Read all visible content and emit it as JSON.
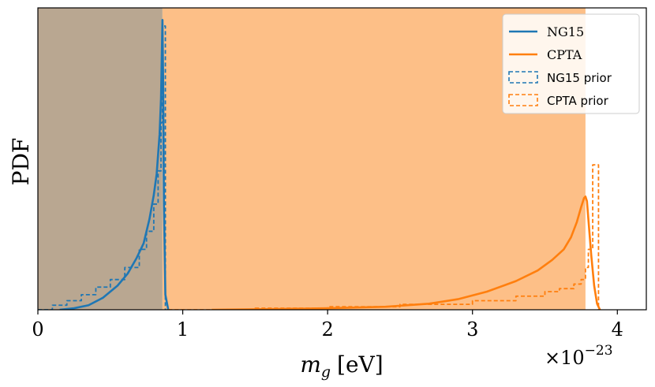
{
  "chart_data": {
    "type": "line",
    "xlabel": "m_g [eV]",
    "xlabel_main": "m",
    "xlabel_sub": "g",
    "xlabel_unit": "[eV]",
    "ylabel": "PDF",
    "xlim": [
      0,
      4.2
    ],
    "x_ticks": [
      "0",
      "1",
      "2",
      "3",
      "4"
    ],
    "x_tick_values": [
      0,
      1,
      2,
      3,
      4
    ],
    "offset_text": "×10",
    "offset_exp": "−23",
    "legend_position": "top-right",
    "shaded_regions": [
      {
        "name": "NG15 bound",
        "x": [
          0,
          0.86
        ],
        "color": "#b9a791"
      },
      {
        "name": "CPTA bound",
        "x": [
          0.86,
          3.78
        ],
        "color": "#fdbf87"
      }
    ],
    "series": [
      {
        "name": "NG15",
        "style": "solid",
        "color": "#1f77b4",
        "x": [
          0.15,
          0.25,
          0.35,
          0.45,
          0.55,
          0.62,
          0.68,
          0.73,
          0.77,
          0.8,
          0.82,
          0.84,
          0.85,
          0.86,
          0.865,
          0.87,
          0.88,
          0.9
        ],
        "y": [
          0.0,
          0.005,
          0.015,
          0.04,
          0.08,
          0.12,
          0.17,
          0.22,
          0.3,
          0.38,
          0.45,
          0.58,
          0.7,
          0.96,
          0.75,
          0.35,
          0.05,
          0.0
        ]
      },
      {
        "name": "CPTA",
        "style": "solid",
        "color": "#ff7f0e",
        "x": [
          1.2,
          1.6,
          2.0,
          2.4,
          2.7,
          2.9,
          3.1,
          3.3,
          3.45,
          3.55,
          3.63,
          3.68,
          3.72,
          3.75,
          3.77,
          3.78,
          3.79,
          3.8,
          3.82,
          3.84,
          3.86,
          3.88
        ],
        "y": [
          0.0,
          0.002,
          0.005,
          0.01,
          0.02,
          0.035,
          0.06,
          0.095,
          0.13,
          0.165,
          0.2,
          0.24,
          0.29,
          0.34,
          0.37,
          0.375,
          0.36,
          0.3,
          0.18,
          0.08,
          0.02,
          0.0
        ]
      },
      {
        "name": "NG15 prior",
        "style": "dashed-step",
        "color": "#1f77b4",
        "x": [
          0.0,
          0.1,
          0.2,
          0.3,
          0.4,
          0.5,
          0.6,
          0.7,
          0.75,
          0.8,
          0.83,
          0.85,
          0.86,
          0.87,
          0.88
        ],
        "y": [
          0.0,
          0.015,
          0.03,
          0.05,
          0.075,
          0.1,
          0.14,
          0.2,
          0.26,
          0.35,
          0.46,
          0.62,
          0.94,
          0.94,
          0.0
        ]
      },
      {
        "name": "CPTA prior",
        "style": "dashed-step",
        "color": "#ff7f0e",
        "x": [
          0.9,
          1.5,
          2.0,
          2.5,
          3.0,
          3.3,
          3.5,
          3.6,
          3.7,
          3.75,
          3.78,
          3.8,
          3.83,
          3.86,
          3.87
        ],
        "y": [
          0.0,
          0.005,
          0.01,
          0.018,
          0.03,
          0.045,
          0.06,
          0.07,
          0.085,
          0.1,
          0.14,
          0.2,
          0.48,
          0.48,
          0.0
        ]
      }
    ]
  }
}
